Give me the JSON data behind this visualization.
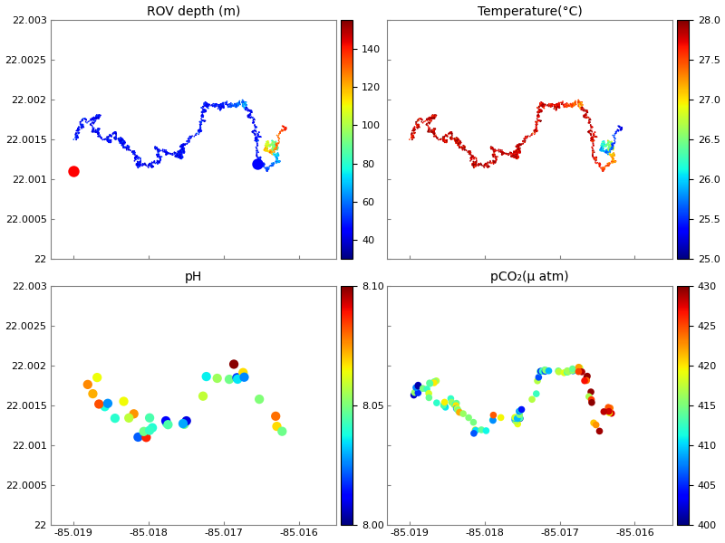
{
  "xlim": [
    -85.0193,
    -85.0155
  ],
  "ylim": [
    22.0,
    22.003
  ],
  "xticks": [
    -85.019,
    -85.018,
    -85.017,
    -85.016
  ],
  "yticks": [
    22.0,
    22.0005,
    22.001,
    22.0015,
    22.002,
    22.0025,
    22.003
  ],
  "panel_titles": [
    "ROV depth (m)",
    "Temperature(°C)",
    "pH",
    "pCO₂(μ atm)"
  ],
  "depth_vmin": 30,
  "depth_vmax": 155,
  "depth_cbar_ticks": [
    40,
    60,
    80,
    100,
    120,
    140
  ],
  "temp_vmin": 25.0,
  "temp_vmax": 28.0,
  "temp_cbar_ticks": [
    25,
    25.5,
    26,
    26.5,
    27,
    27.5,
    28
  ],
  "ph_vmin": 8.0,
  "ph_vmax": 8.1,
  "ph_cbar_ticks": [
    8.0,
    8.05,
    8.1
  ],
  "pco2_vmin": 400,
  "pco2_vmax": 430,
  "pco2_cbar_ticks": [
    400,
    405,
    410,
    415,
    420,
    425,
    430
  ],
  "start_color": "red",
  "end_color": "blue",
  "bg_color": "white",
  "marker_size": 80
}
